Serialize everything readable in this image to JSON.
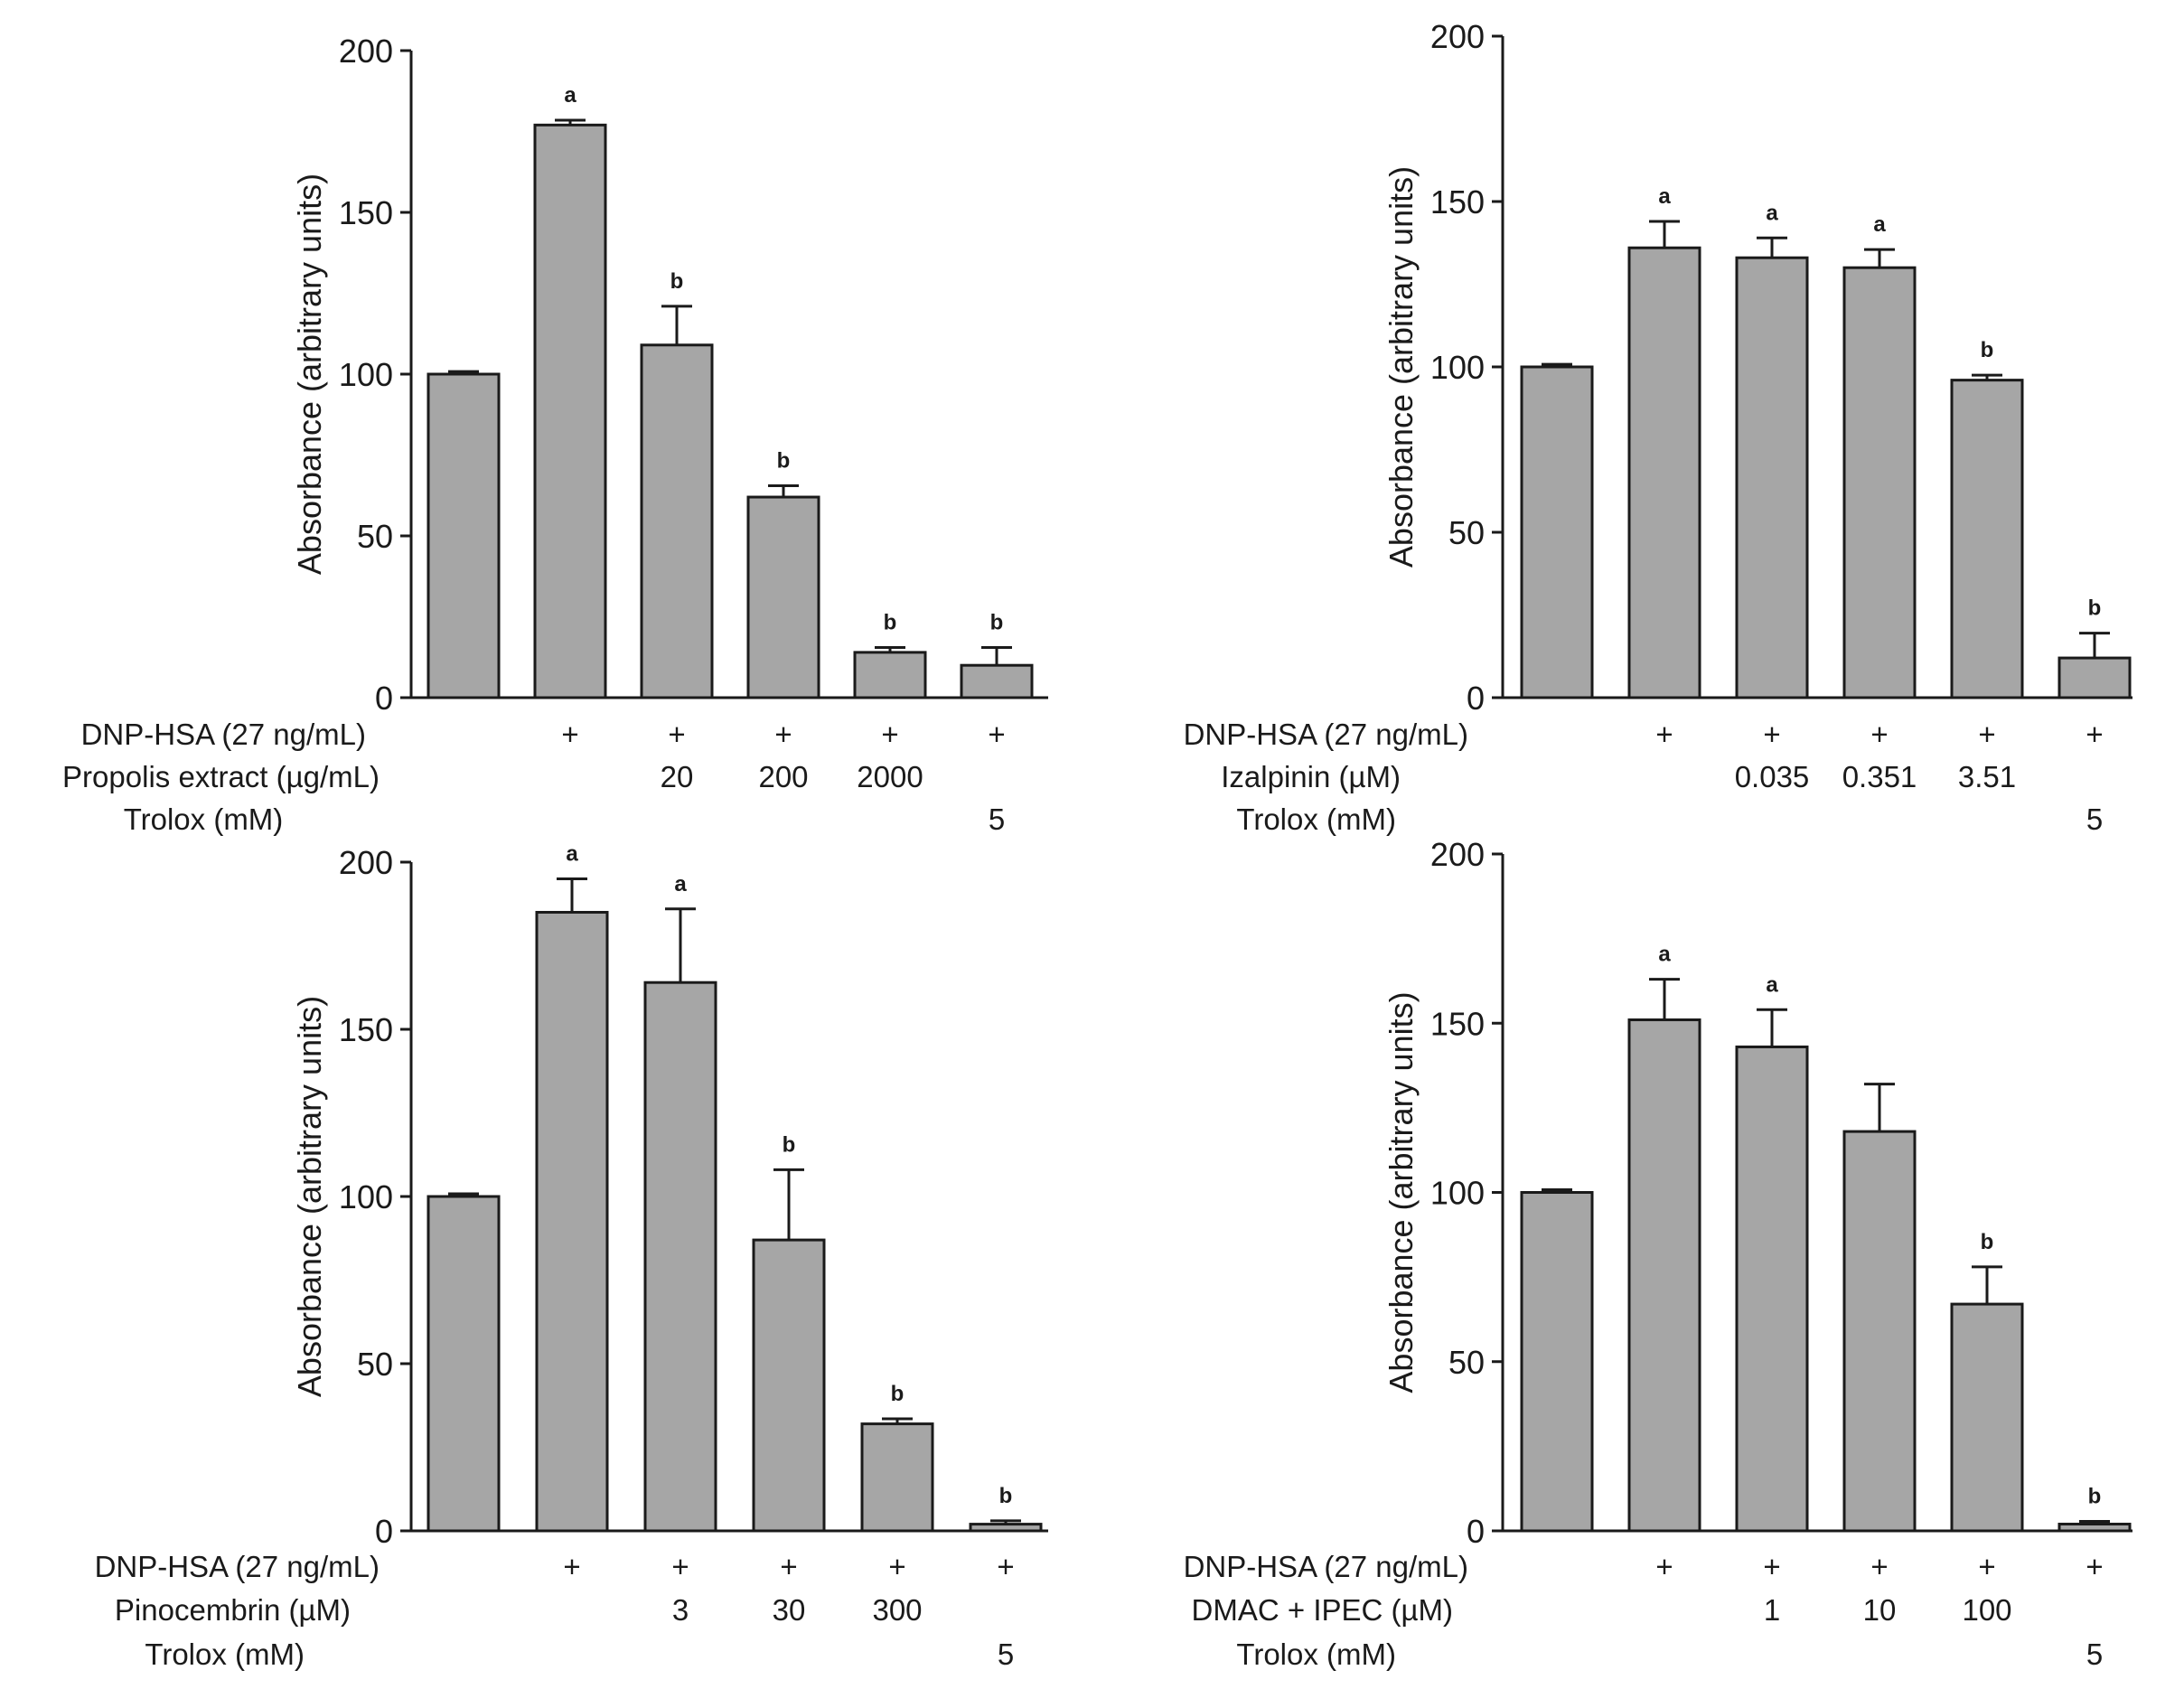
{
  "chart_data": [
    {
      "type": "bar",
      "ylabel": "Absorbance (arbitrary units)",
      "ylim": [
        0,
        200
      ],
      "yticks": [
        0,
        50,
        100,
        150,
        200
      ],
      "values": [
        100,
        177,
        109,
        62,
        14,
        10
      ],
      "errors": [
        0.8,
        1.5,
        12,
        3.5,
        1.5,
        5.5
      ],
      "significance": [
        "",
        "a",
        "b",
        "b",
        "b",
        "b"
      ],
      "row_labels": [
        "DNP-HSA (27 ng/mL)",
        "Propolis extract (µg/mL)",
        "Trolox (mM)"
      ],
      "rows": [
        [
          "",
          "+",
          "+",
          "+",
          "+",
          "+"
        ],
        [
          "",
          "",
          "20",
          "200",
          "2000",
          ""
        ],
        [
          "",
          "",
          "",
          "",
          "",
          "5"
        ]
      ],
      "bar_color": "#a6a6a6"
    },
    {
      "type": "bar",
      "ylabel": "Absorbance (arbitrary units)",
      "ylim": [
        0,
        200
      ],
      "yticks": [
        0,
        50,
        100,
        150,
        200
      ],
      "values": [
        100,
        136,
        133,
        130,
        96,
        12
      ],
      "errors": [
        0.8,
        8,
        6,
        5.5,
        1.5,
        7.5
      ],
      "significance": [
        "",
        "a",
        "a",
        "a",
        "b",
        "b"
      ],
      "row_labels": [
        "DNP-HSA (27 ng/mL)",
        "Izalpinin (µM)",
        "Trolox (mM)"
      ],
      "rows": [
        [
          "",
          "+",
          "+",
          "+",
          "+",
          "+"
        ],
        [
          "",
          "",
          "0.035",
          "0.351",
          "3.51",
          ""
        ],
        [
          "",
          "",
          "",
          "",
          "",
          "5"
        ]
      ],
      "bar_color": "#a6a6a6"
    },
    {
      "type": "bar",
      "ylabel": "Absorbance (arbitrary units)",
      "ylim": [
        0,
        200
      ],
      "yticks": [
        0,
        50,
        100,
        150,
        200
      ],
      "values": [
        100,
        185,
        164,
        87,
        32,
        2
      ],
      "errors": [
        0.8,
        10,
        22,
        21,
        1.5,
        1
      ],
      "significance": [
        "",
        "a",
        "a",
        "b",
        "b",
        "b"
      ],
      "row_labels": [
        "DNP-HSA (27 ng/mL)",
        "Pinocembrin (µM)",
        "Trolox (mM)"
      ],
      "rows": [
        [
          "",
          "+",
          "+",
          "+",
          "+",
          "+"
        ],
        [
          "",
          "",
          "3",
          "30",
          "300",
          ""
        ],
        [
          "",
          "",
          "",
          "",
          "",
          "5"
        ]
      ],
      "bar_color": "#a6a6a6"
    },
    {
      "type": "bar",
      "ylabel": "Absorbance (arbitrary units)",
      "ylim": [
        0,
        200
      ],
      "yticks": [
        0,
        50,
        100,
        150,
        200
      ],
      "values": [
        100,
        151,
        143,
        118,
        67,
        2
      ],
      "errors": [
        0.8,
        12,
        11,
        14,
        11,
        0.8
      ],
      "significance": [
        "",
        "a",
        "a",
        "",
        "b",
        "b"
      ],
      "row_labels": [
        "DNP-HSA (27 ng/mL)",
        "DMAC + IPEC (µM)",
        "Trolox (mM)"
      ],
      "rows": [
        [
          "",
          "+",
          "+",
          "+",
          "+",
          "+"
        ],
        [
          "",
          "",
          "1",
          "10",
          "100",
          ""
        ],
        [
          "",
          "",
          "",
          "",
          "",
          "5"
        ]
      ],
      "bar_color": "#a6a6a6"
    }
  ]
}
